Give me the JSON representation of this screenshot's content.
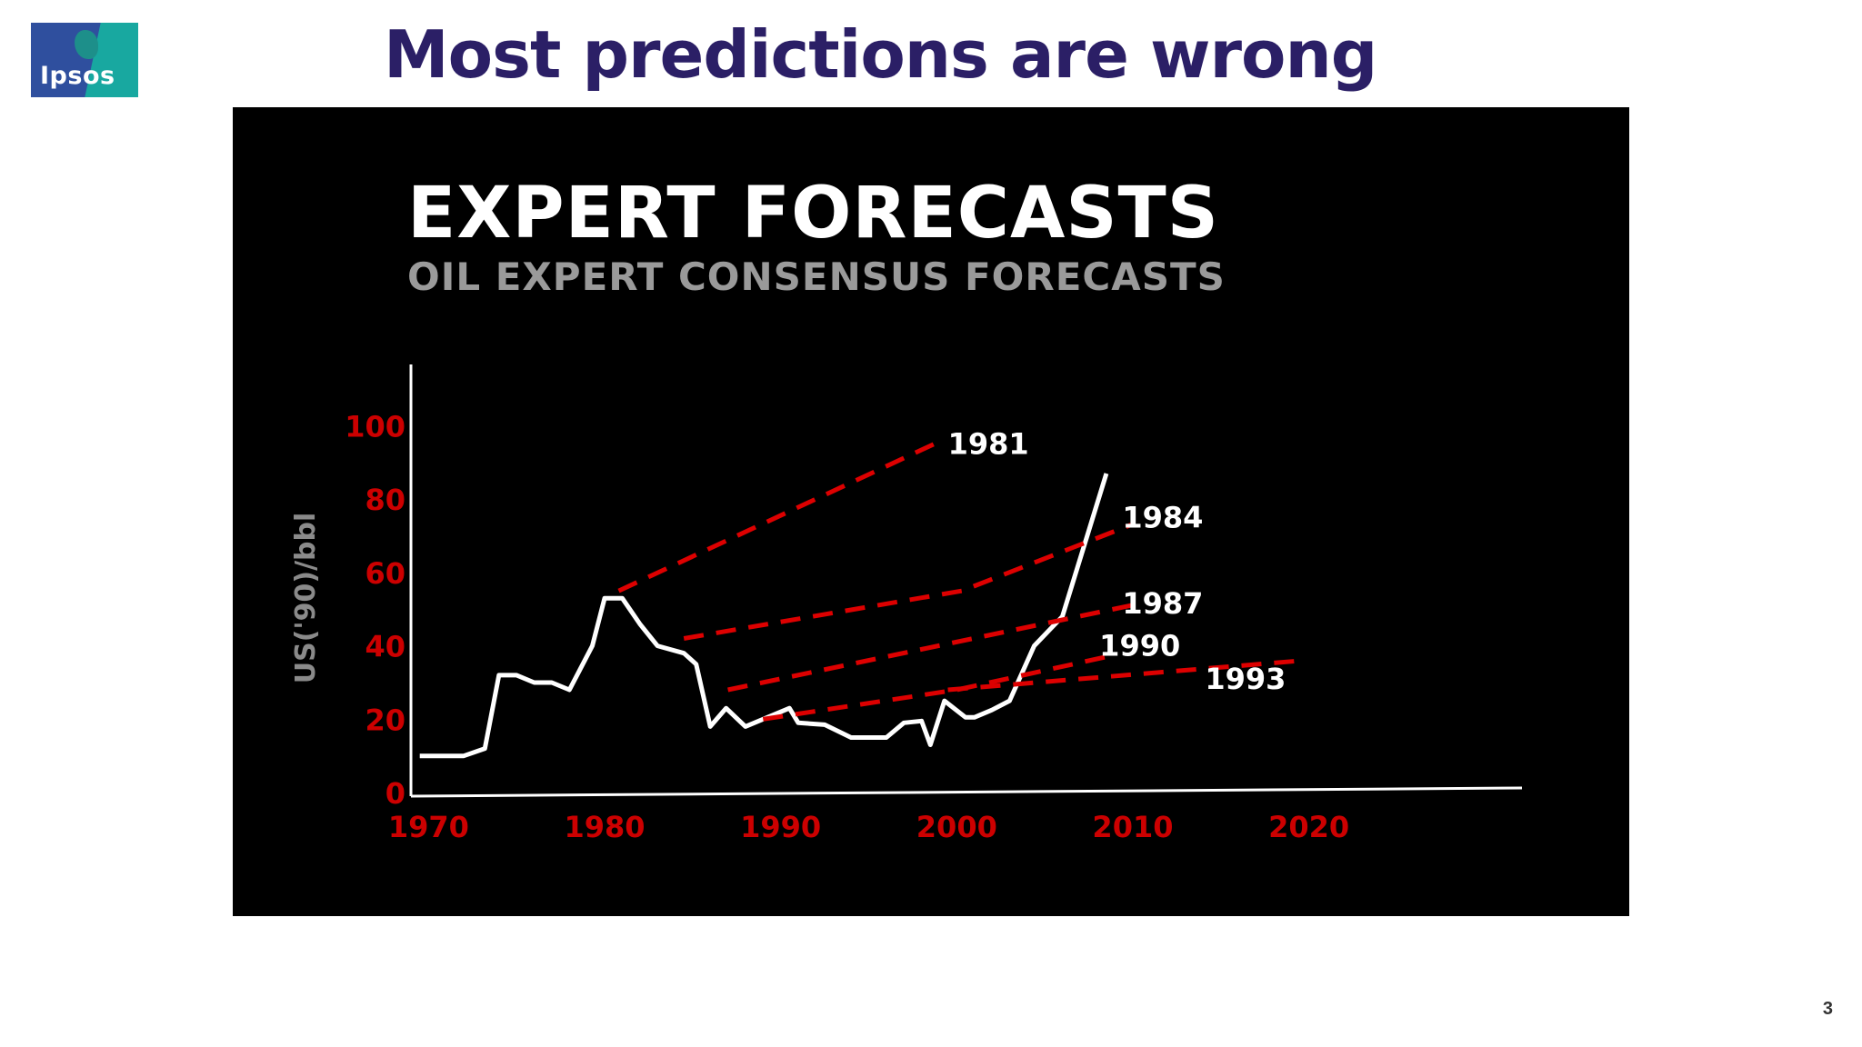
{
  "slide": {
    "title": "Most predictions are wrong",
    "logo_text": "Ipsos",
    "page_number": "3"
  },
  "colors": {
    "title": "#2b1f66",
    "axis_tick_labels": "#cc0000",
    "forecast_lines": "#dd0000",
    "actual_line": "#ffffff",
    "panel_background": "#000000",
    "logo_blue": "#2f4f9e",
    "logo_teal": "#18a8a0"
  },
  "chart_data": {
    "type": "line",
    "title": "EXPERT FORECASTS",
    "subtitle": "OIL EXPERT CONSENSUS FORECASTS",
    "ylabel": "US('90)/bbl",
    "xlabel": "",
    "xlim": [
      1969,
      2032
    ],
    "ylim": [
      0,
      115
    ],
    "x_ticks": [
      1970,
      1980,
      1990,
      2000,
      2010,
      2020
    ],
    "y_ticks": [
      0,
      20,
      40,
      60,
      80,
      100
    ],
    "grid": false,
    "legend": "none (series labelled inline at line ends)",
    "series": [
      {
        "name": "",
        "style": "solid",
        "points": [
          [
            1969.5,
            10
          ],
          [
            1971.3,
            10
          ],
          [
            1972,
            10
          ],
          [
            1973.2,
            12
          ],
          [
            1974,
            32
          ],
          [
            1975,
            32
          ],
          [
            1976,
            30
          ],
          [
            1977,
            30
          ],
          [
            1978,
            28
          ],
          [
            1979.3,
            40
          ],
          [
            1980,
            53
          ],
          [
            1981,
            53
          ],
          [
            1982,
            46
          ],
          [
            1983,
            40
          ],
          [
            1984.5,
            38
          ],
          [
            1985.2,
            35
          ],
          [
            1986,
            18
          ],
          [
            1986.9,
            23
          ],
          [
            1988,
            18
          ],
          [
            1989,
            20
          ],
          [
            1990.5,
            23
          ],
          [
            1991,
            19
          ],
          [
            1992.5,
            18.5
          ],
          [
            1994,
            15
          ],
          [
            1996,
            15
          ],
          [
            1997,
            19
          ],
          [
            1998,
            19.5
          ],
          [
            1998.5,
            13
          ],
          [
            1999.3,
            25
          ],
          [
            2000.5,
            20.5
          ],
          [
            2001,
            20.5
          ],
          [
            2002,
            22.5
          ],
          [
            2003,
            25
          ],
          [
            2004.4,
            40
          ],
          [
            2006,
            48
          ],
          [
            2008.5,
            87
          ]
        ]
      },
      {
        "name": "1981",
        "style": "dashed",
        "points": [
          [
            1980.8,
            55
          ],
          [
            1998.7,
            95
          ]
        ]
      },
      {
        "name": "1984",
        "style": "dashed",
        "points": [
          [
            1984.5,
            42
          ],
          [
            2000.3,
            55
          ],
          [
            2009.9,
            73
          ]
        ]
      },
      {
        "name": "1987",
        "style": "dashed",
        "points": [
          [
            1987,
            28
          ],
          [
            2009.9,
            51
          ]
        ]
      },
      {
        "name": "1990",
        "style": "dashed",
        "points": [
          [
            1989,
            20
          ],
          [
            2000,
            28
          ],
          [
            2008.5,
            37
          ]
        ]
      },
      {
        "name": "1993",
        "style": "dashed",
        "points": [
          [
            1999.5,
            28
          ],
          [
            2019.7,
            36
          ]
        ]
      }
    ],
    "inline_labels": [
      {
        "text": "1981",
        "x": 1999.5,
        "y": 95
      },
      {
        "text": "1984",
        "x": 2009.4,
        "y": 75
      },
      {
        "text": "1987",
        "x": 2009.4,
        "y": 51.5
      },
      {
        "text": "1990",
        "x": 2008.1,
        "y": 40
      },
      {
        "text": "1993",
        "x": 2014.1,
        "y": 31
      }
    ]
  }
}
